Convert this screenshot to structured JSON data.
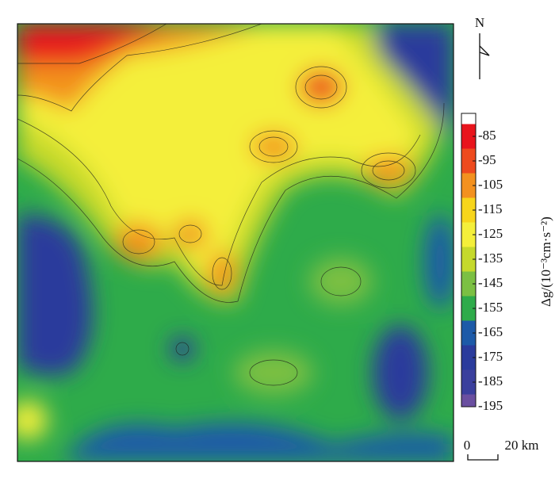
{
  "north": "N",
  "scale": {
    "start": "0",
    "end": "20 km"
  },
  "colorbar": {
    "label": "Δg/(10⁻³cm·s⁻²)",
    "ticks": [
      -85,
      -95,
      -105,
      -115,
      -125,
      -135,
      -145,
      -155,
      -165,
      -175,
      -185,
      -195
    ],
    "colors": [
      "#e8141c",
      "#ee4a1e",
      "#f3911f",
      "#f7d51b",
      "#f4ef3a",
      "#c5d92c",
      "#7bc043",
      "#2eab4a",
      "#1d5aa8",
      "#2a3b9c",
      "#3a3f9d",
      "#6a4fa0"
    ]
  }
}
